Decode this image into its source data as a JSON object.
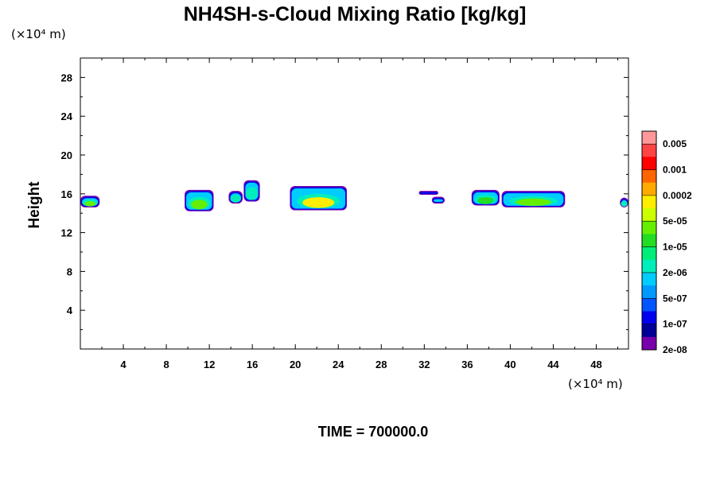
{
  "chart_data": {
    "type": "heatmap",
    "title": "NH4SH-s-Cloud Mixing Ratio [kg/kg]",
    "ylabel": "Height",
    "x_unit": "(×10⁴ m)",
    "y_unit": "(×10⁴ m)",
    "xlim": [
      0,
      51
    ],
    "ylim": [
      0,
      30
    ],
    "x_ticks": [
      "4",
      "8",
      "12",
      "16",
      "20",
      "24",
      "28",
      "32",
      "36",
      "40",
      "44",
      "48"
    ],
    "y_ticks": [
      "4",
      "8",
      "12",
      "16",
      "20",
      "24",
      "28"
    ],
    "x_tick_values": [
      4,
      8,
      12,
      16,
      20,
      24,
      28,
      32,
      36,
      40,
      44,
      48
    ],
    "y_tick_values": [
      4,
      8,
      12,
      16,
      20,
      24,
      28
    ],
    "time_label": "TIME = 700000.0",
    "colorbar": {
      "labels": [
        "0.005",
        "0.001",
        "0.0002",
        "5e-05",
        "1e-05",
        "2e-06",
        "5e-07",
        "1e-07",
        "2e-08"
      ],
      "colors": [
        "#ff9999",
        "#ff4444",
        "#ff0000",
        "#ff6600",
        "#ffaa00",
        "#ffee00",
        "#ccff00",
        "#66ee00",
        "#22dd22",
        "#00ee77",
        "#00eebb",
        "#00ccff",
        "#0099ff",
        "#0055ff",
        "#0000ee",
        "#000099",
        "#7700aa"
      ]
    },
    "cloud_blobs": [
      {
        "x0": 0.0,
        "x1": 1.8,
        "y0": 14.6,
        "y1": 15.8,
        "core": "#66ee00"
      },
      {
        "x0": 9.7,
        "x1": 12.4,
        "y0": 14.2,
        "y1": 16.4,
        "core": "#66ee00"
      },
      {
        "x0": 13.8,
        "x1": 15.1,
        "y0": 15.0,
        "y1": 16.3,
        "core": "#00eebb"
      },
      {
        "x0": 15.2,
        "x1": 16.7,
        "y0": 15.2,
        "y1": 17.4,
        "core": "#00eebb"
      },
      {
        "x0": 19.5,
        "x1": 24.8,
        "y0": 14.3,
        "y1": 16.8,
        "core": "#ffee00"
      },
      {
        "x0": 31.5,
        "x1": 33.3,
        "y0": 15.9,
        "y1": 16.3,
        "core": "#00ccff"
      },
      {
        "x0": 32.7,
        "x1": 33.9,
        "y0": 15.0,
        "y1": 15.7,
        "core": "#00ccff"
      },
      {
        "x0": 36.4,
        "x1": 39.0,
        "y0": 14.8,
        "y1": 16.4,
        "core": "#22dd22"
      },
      {
        "x0": 39.2,
        "x1": 45.1,
        "y0": 14.6,
        "y1": 16.3,
        "core": "#66ee00"
      },
      {
        "x0": 50.2,
        "x1": 51.0,
        "y0": 14.6,
        "y1": 15.6,
        "core": "#00eebb"
      }
    ]
  }
}
